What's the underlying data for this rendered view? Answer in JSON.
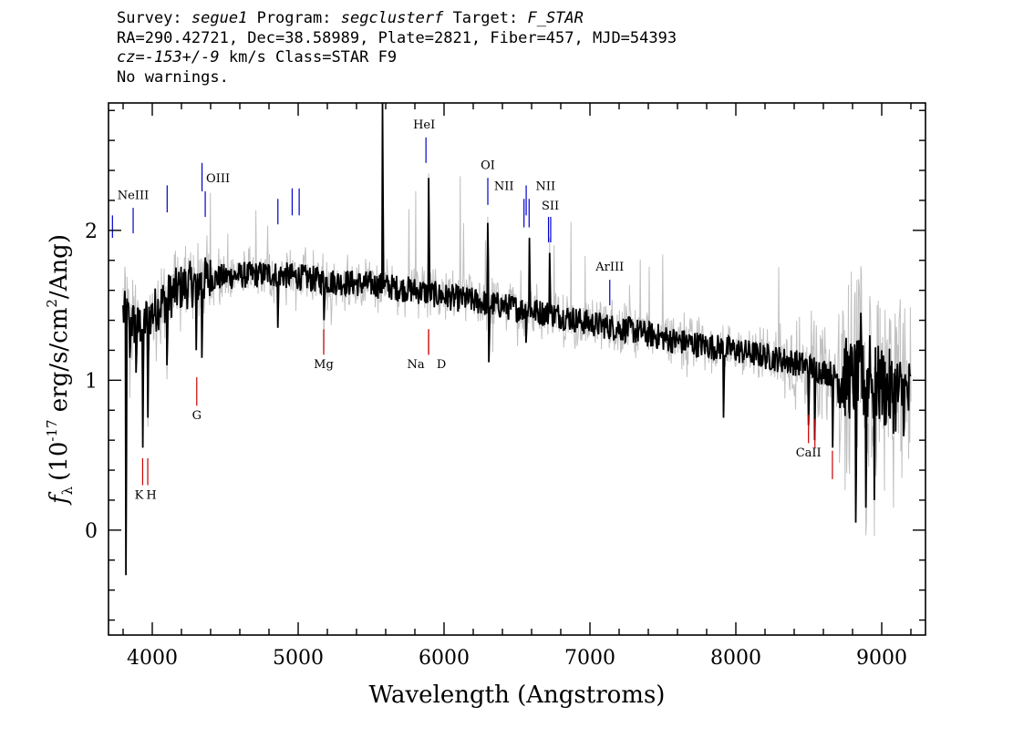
{
  "header": {
    "line1": {
      "survey_label": "Survey:",
      "survey": "segue1",
      "program_label": "Program:",
      "program": "segclusterf",
      "target_label": "Target:",
      "target": "F_STAR"
    },
    "line2": "RA=290.42721, Dec=38.58989, Plate=2821, Fiber=457, MJD=54393",
    "line3": {
      "cz_label": "cz=",
      "cz": "-153+/-9",
      "rest": "km/s Class=STAR F9"
    },
    "line4": "No warnings."
  },
  "chart_data": {
    "type": "line",
    "xlabel": "Wavelength (Angstroms)",
    "ylabel": "f_λ (10^-17 erg/s/cm^2/Ang)",
    "ylabel_parts": {
      "f": "f",
      "sub": "λ",
      "a": "(10",
      "exp1": "-17",
      "b": " erg/s/cm",
      "exp2": "2",
      "c": "/Ang)"
    },
    "xlim": [
      3700,
      9300
    ],
    "ylim": [
      -0.7,
      2.85
    ],
    "x_ticks": [
      4000,
      5000,
      6000,
      7000,
      8000,
      9000
    ],
    "y_ticks": [
      0,
      1,
      2
    ],
    "x_minor_step": 200,
    "y_minor_step": 0.2,
    "x_range_data": [
      3800,
      9200
    ],
    "colors": {
      "flux": "#000000",
      "error": "#c0c0c0",
      "emission": "#0000cc",
      "absorption": "#cc0000"
    },
    "continuum_knots": [
      [
        3800,
        1.45
      ],
      [
        3900,
        1.35
      ],
      [
        4000,
        1.45
      ],
      [
        4100,
        1.55
      ],
      [
        4200,
        1.62
      ],
      [
        4400,
        1.68
      ],
      [
        4600,
        1.7
      ],
      [
        4800,
        1.71
      ],
      [
        5000,
        1.69
      ],
      [
        5200,
        1.66
      ],
      [
        5500,
        1.64
      ],
      [
        5800,
        1.6
      ],
      [
        6000,
        1.56
      ],
      [
        6200,
        1.53
      ],
      [
        6500,
        1.48
      ],
      [
        6800,
        1.43
      ],
      [
        7000,
        1.38
      ],
      [
        7300,
        1.33
      ],
      [
        7600,
        1.26
      ],
      [
        8000,
        1.2
      ],
      [
        8400,
        1.12
      ],
      [
        8800,
        1.0
      ],
      [
        9000,
        0.95
      ],
      [
        9200,
        0.88
      ]
    ],
    "features": [
      {
        "x": 3820,
        "y": -0.3
      },
      {
        "x": 3845,
        "y": 1.15
      },
      {
        "x": 3889,
        "y": 1.05
      },
      {
        "x": 3934,
        "y": 0.55
      },
      {
        "x": 3969,
        "y": 0.75
      },
      {
        "x": 4102,
        "y": 1.1
      },
      {
        "x": 4300,
        "y": 1.2
      },
      {
        "x": 4341,
        "y": 1.15
      },
      {
        "x": 4861,
        "y": 1.35
      },
      {
        "x": 5177,
        "y": 1.4
      },
      {
        "x": 5577,
        "y": 2.85
      },
      {
        "x": 5893,
        "y": 2.35
      },
      {
        "x": 6300,
        "y": 2.05
      },
      {
        "x": 6306,
        "y": 1.12
      },
      {
        "x": 6563,
        "y": 1.25
      },
      {
        "x": 6583,
        "y": 1.95
      },
      {
        "x": 6725,
        "y": 1.85
      },
      {
        "x": 7915,
        "y": 0.75
      },
      {
        "x": 8498,
        "y": 0.7
      },
      {
        "x": 8542,
        "y": 0.6
      },
      {
        "x": 8662,
        "y": 0.55
      },
      {
        "x": 8821,
        "y": 0.05
      },
      {
        "x": 8857,
        "y": 1.45
      },
      {
        "x": 8890,
        "y": 0.15
      },
      {
        "x": 8920,
        "y": 1.3
      },
      {
        "x": 8950,
        "y": 0.2
      },
      {
        "x": 8990,
        "y": 1.1
      }
    ],
    "emission_lines": [
      {
        "label": "",
        "x": 3727,
        "y0": 2.1,
        "y1": 1.95,
        "ly": 2.16,
        "dx": -8
      },
      {
        "label": "NeIII",
        "x": 3869,
        "y0": 2.15,
        "y1": 1.98,
        "ly": 2.21,
        "dx": 0
      },
      {
        "label": "",
        "x": 4102,
        "y0": 2.3,
        "y1": 2.12,
        "ly": 2.36,
        "dx": 0
      },
      {
        "label": "",
        "x": 4341,
        "y0": 2.45,
        "y1": 2.26,
        "ly": 2.51,
        "dx": 0
      },
      {
        "label": "OIII",
        "x": 4363,
        "y0": 2.26,
        "y1": 2.09,
        "ly": 2.32,
        "dx": 14
      },
      {
        "label": "",
        "x": 4861,
        "y0": 2.21,
        "y1": 2.04,
        "ly": 2.27,
        "dx": -8
      },
      {
        "label": "",
        "x": 4959,
        "y0": 2.28,
        "y1": 2.1,
        "ly": 2.34,
        "dx": 12
      },
      {
        "label": "",
        "x": 5007,
        "y0": 2.28,
        "y1": 2.1,
        "ly": 2.34,
        "dx": 0
      },
      {
        "label": "HeI",
        "x": 5876,
        "y0": 2.62,
        "y1": 2.45,
        "ly": 2.68,
        "dx": -2
      },
      {
        "label": "OI",
        "x": 6300,
        "y0": 2.35,
        "y1": 2.17,
        "ly": 2.41,
        "dx": 0
      },
      {
        "label": "NII",
        "x": 6548,
        "y0": 2.21,
        "y1": 2.02,
        "ly": 2.27,
        "dx": -22
      },
      {
        "label": "",
        "x": 6563,
        "y0": 2.3,
        "y1": 2.1,
        "ly": 2.36,
        "dx": 0
      },
      {
        "label": "NII",
        "x": 6583,
        "y0": 2.21,
        "y1": 2.02,
        "ly": 2.27,
        "dx": 18
      },
      {
        "label": "SII",
        "x": 6716,
        "y0": 2.09,
        "y1": 1.92,
        "ly": 2.14,
        "dx": 2
      },
      {
        "label": "",
        "x": 6731,
        "y0": 2.09,
        "y1": 1.92,
        "ly": 2.14,
        "dx": 0
      },
      {
        "label": "ArIII",
        "x": 7136,
        "y0": 1.67,
        "y1": 1.5,
        "ly": 1.73,
        "dx": 0
      }
    ],
    "absorption_lines": [
      {
        "label": "K",
        "x": 3934,
        "y0": 0.3,
        "y1": 0.48,
        "ly": 0.21,
        "dx": -4
      },
      {
        "label": "H",
        "x": 3969,
        "y0": 0.3,
        "y1": 0.48,
        "ly": 0.21,
        "dx": 4
      },
      {
        "label": "G",
        "x": 4305,
        "y0": 0.83,
        "y1": 1.02,
        "ly": 0.74,
        "dx": 0
      },
      {
        "label": "Mg",
        "x": 5175,
        "y0": 1.17,
        "y1": 1.34,
        "ly": 1.08,
        "dx": 0
      },
      {
        "label": "Na",
        "x": 5894,
        "y0": 1.17,
        "y1": 1.34,
        "ly": 1.08,
        "dx": -14
      },
      {
        "label": "D",
        "x": 5894,
        "y0": 1.17,
        "y1": 1.34,
        "ly": 1.08,
        "dx": 14
      },
      {
        "label": "CaII",
        "x": 8498,
        "y0": 0.58,
        "y1": 0.77,
        "ly": 0.49,
        "dx": 0
      },
      {
        "label": "",
        "x": 8542,
        "y0": 0.55,
        "y1": 0.74,
        "ly": 0.49,
        "dx": 0
      },
      {
        "label": "",
        "x": 8662,
        "y0": 0.34,
        "y1": 0.53,
        "ly": 0.49,
        "dx": 0
      }
    ]
  }
}
